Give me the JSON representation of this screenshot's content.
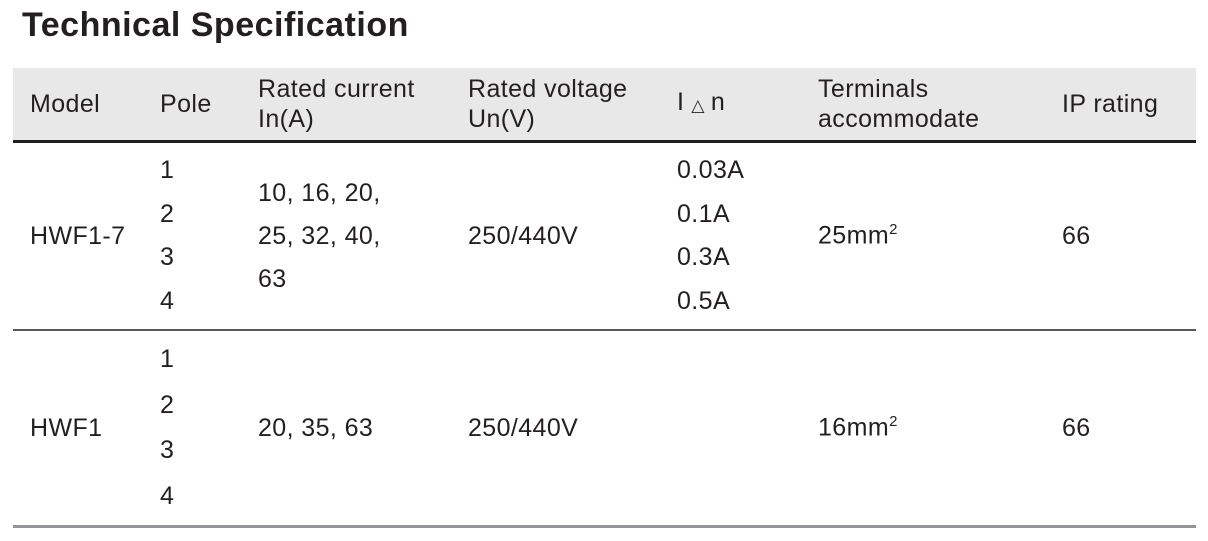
{
  "title": "Technical Specification",
  "colors": {
    "header_bg": "#e8e8e8",
    "header_rule": "#1f1f1f",
    "row_rule": "#58595b",
    "bottom_rule": "#939598",
    "text": "#231f20"
  },
  "table": {
    "headers": {
      "model": "Model",
      "pole": "Pole",
      "rated_current_line1": "Rated current",
      "rated_current_line2": "In(A)",
      "rated_voltage_line1": "Rated voltage",
      "rated_voltage_line2": "Un(V)",
      "i_delta_n": {
        "prefix": "I",
        "symbol": "△",
        "suffix": "n"
      },
      "terminals_line1": "Terminals",
      "terminals_line2": "accommodate",
      "ip_rating": "IP rating"
    },
    "rows": [
      {
        "model": "HWF1-7",
        "poles": [
          "1",
          "2",
          "3",
          "4"
        ],
        "rated_current_lines": [
          "10, 16, 20,",
          "25, 32, 40,",
          "63"
        ],
        "rated_voltage": "250/440V",
        "residual_currents": [
          "0.03A",
          "0.1A",
          "0.3A",
          "0.5A"
        ],
        "terminals": {
          "value": "25mm",
          "sup": "2"
        },
        "ip_rating": "66"
      },
      {
        "model": "HWF1",
        "poles": [
          "1",
          "2",
          "3",
          "4"
        ],
        "rated_current_lines": [
          "20, 35, 63"
        ],
        "rated_voltage": "250/440V",
        "residual_currents": [],
        "terminals": {
          "value": "16mm",
          "sup": "2"
        },
        "ip_rating": "66"
      }
    ]
  }
}
